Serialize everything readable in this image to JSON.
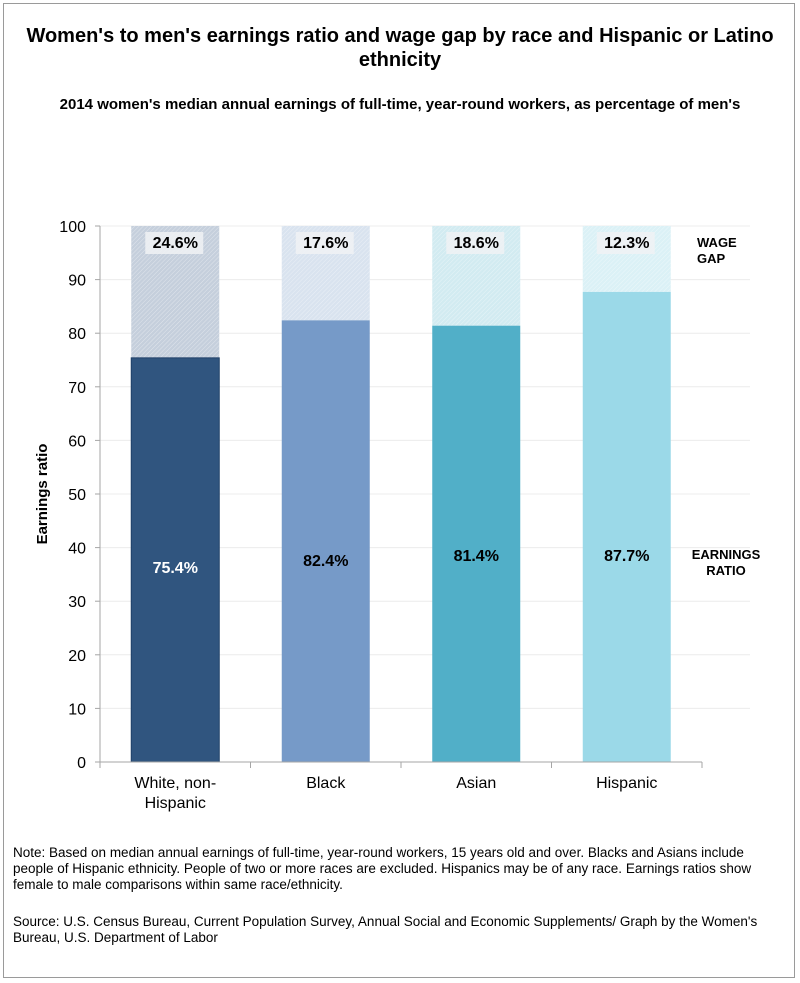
{
  "chart_data": {
    "type": "bar",
    "stacked": true,
    "title": "Women's to men's earnings ratio and wage gap by race and Hispanic or Latino ethnicity",
    "subtitle": "2014 women's median annual earnings of full-time, year-round workers, as percentage of men's",
    "xlabel": "",
    "ylabel": "Earnings ratio",
    "ylim": [
      0,
      100
    ],
    "yticks": [
      0,
      10,
      20,
      30,
      40,
      50,
      60,
      70,
      80,
      90,
      100
    ],
    "grid": true,
    "categories": [
      "White, non-Hispanic",
      "Black",
      "Asian",
      "Hispanic"
    ],
    "category_lines": [
      [
        "White, non-",
        "Hispanic"
      ],
      [
        "Black"
      ],
      [
        "Asian"
      ],
      [
        "Hispanic"
      ]
    ],
    "series": [
      {
        "name": "Earnings ratio",
        "legend_lines": [
          "EARNINGS",
          "RATIO"
        ],
        "values": [
          75.4,
          82.4,
          81.4,
          87.7
        ],
        "labels": [
          "75.4%",
          "82.4%",
          "81.4%",
          "87.7%"
        ],
        "colors": [
          "#30557f",
          "#769ac8",
          "#51afc8",
          "#9bd9e8"
        ],
        "label_colors": [
          "#ffffff",
          "#000000",
          "#000000",
          "#000000"
        ]
      },
      {
        "name": "Wage gap",
        "legend_lines": [
          "WAGE",
          "GAP"
        ],
        "values": [
          24.6,
          17.6,
          18.6,
          12.3
        ],
        "labels": [
          "24.6%",
          "17.6%",
          "18.6%",
          "12.3%"
        ],
        "colors": [
          "#c5cfdc",
          "#d9e3ef",
          "#d2ebf1",
          "#dbf1f6"
        ]
      }
    ],
    "legend": "right"
  },
  "note": "Note: Based on median annual earnings of full-time, year-round workers, 15 years old and over. Blacks and Asians include people of Hispanic ethnicity. People of two or more races are excluded. Hispanics may be of any race. Earnings ratios show female to male comparisons within same race/ethnicity.",
  "source": "Source: U.S. Census Bureau, Current Population Survey, Annual Social and Economic Supplements/ Graph by the Women's Bureau, U.S. Department of Labor"
}
